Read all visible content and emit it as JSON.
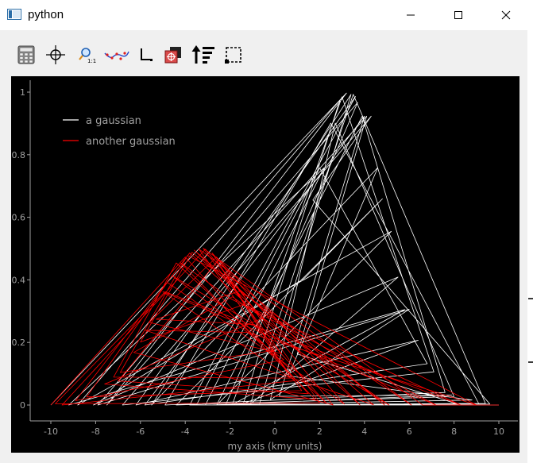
{
  "window": {
    "title": "python",
    "controls": [
      "minimize",
      "maximize",
      "close"
    ]
  },
  "toolbar": {
    "tools": [
      {
        "name": "calculator-tool",
        "icon": "calculator-icon"
      },
      {
        "name": "crosshair-tool",
        "icon": "crosshair-icon"
      },
      {
        "name": "zoom-tool",
        "icon": "zoom-1to1-icon"
      },
      {
        "name": "curve-fit-tool",
        "icon": "curve-points-icon"
      },
      {
        "name": "axes-tool",
        "icon": "axes-icon"
      },
      {
        "name": "export-tool",
        "icon": "export-target-icon"
      },
      {
        "name": "sort-tool",
        "icon": "sort-arrow-icon"
      },
      {
        "name": "select-rect-tool",
        "icon": "dashed-select-icon"
      }
    ]
  },
  "colors": {
    "plot_background": "#000000",
    "series_white": "#ffffff",
    "series_red": "#ff0000",
    "axis_text": "#a0a0a0"
  },
  "chart_data": {
    "type": "line",
    "title": "",
    "xlabel": "my axis (kmy units)",
    "ylabel": "",
    "xlim": [
      -11,
      11
    ],
    "ylim": [
      -0.05,
      1.03
    ],
    "xticks": [
      -10,
      -8,
      -6,
      -4,
      -2,
      0,
      2,
      4,
      6,
      8,
      10
    ],
    "yticks": [
      0,
      0.2,
      0.4,
      0.6,
      0.8,
      1
    ],
    "xticklabels": [
      "-10",
      "-8",
      "-6",
      "-4",
      "-2",
      "0",
      "2",
      "4",
      "6",
      "8",
      "10"
    ],
    "yticklabels": [
      "0",
      "0.2",
      "0.4",
      "0.6",
      "0.8",
      "1"
    ],
    "grid": false,
    "legend_position": "top-left",
    "series": [
      {
        "name": "a gaussian",
        "color": "#ffffff",
        "mean": 3.3,
        "sigma": 1.75,
        "amplitude": 1.0,
        "x": [
          -10,
          3.2,
          -7.5,
          4.1,
          1.0,
          8.3,
          -3.8,
          3.6,
          -6.2,
          6.4,
          -1.4,
          2.9,
          -8.8,
          5.2,
          -2.6,
          3.9,
          7.6,
          -4.9,
          2.5,
          9.1,
          -0.7,
          3.4,
          -5.5,
          4.6,
          0.6,
          8.8,
          -3.1,
          2.2,
          -9.2,
          5.8,
          -1.9,
          3.0,
          7.1,
          -6.8,
          4.3,
          1.7,
          9.6,
          -2.2,
          3.7,
          -7.9,
          6.0,
          -0.2,
          2.7,
          8.0,
          -4.4,
          4.8,
          1.3,
          -8.1,
          5.5,
          -1.1,
          3.5,
          9.4,
          -3.5,
          2.0,
          6.8,
          -5.8,
          4.0,
          0.2,
          7.9,
          -2.9,
          10
        ],
        "y": [
          0.0,
          0.997,
          0.0,
          0.923,
          0.163,
          0.0,
          0.0,
          0.986,
          0.0,
          0.207,
          0.005,
          0.974,
          0.0,
          0.555,
          0.0,
          0.923,
          0.04,
          0.0,
          0.901,
          0.005,
          0.0,
          0.993,
          0.0,
          0.759,
          0.093,
          0.016,
          0.0,
          0.758,
          0.0,
          0.305,
          0.001,
          0.985,
          0.106,
          0.0,
          0.923,
          0.655,
          0.003,
          0.0,
          0.967,
          0.0,
          0.306,
          0.017,
          0.901,
          0.027,
          0.0,
          0.659,
          0.404,
          0.0,
          0.409,
          0.002,
          0.993,
          0.005,
          0.0,
          0.758,
          0.132,
          0.0,
          0.923,
          0.028,
          0.032,
          0.0,
          0.0
        ]
      },
      {
        "name": "another gaussian",
        "color": "#ff0000",
        "mean": -3.3,
        "sigma": 2.1,
        "amplitude": 0.5,
        "x": [
          -10,
          -4.0,
          1.5,
          -7.0,
          -2.5,
          3.8,
          -3.8,
          -8.9,
          0.4,
          -4.6,
          5.1,
          -1.9,
          -6.3,
          2.6,
          -3.1,
          -9.5,
          0.9,
          -5.0,
          7.2,
          -2.0,
          -4.2,
          1.8,
          -7.6,
          -0.5,
          -3.6,
          4.4,
          -5.8,
          -1.2,
          9.0,
          -3.9,
          -6.9,
          0.0,
          -2.8,
          3.1,
          -4.8,
          -8.4,
          1.2,
          -3.4,
          6.1,
          -1.6,
          -5.3,
          -0.9,
          2.3,
          -4.4,
          -7.2,
          0.7,
          -2.3,
          4.9,
          -3.7,
          -6.0,
          -1.4,
          8.3,
          -4.9,
          -9.8,
          2.0,
          -2.6,
          -5.6,
          0.3,
          -3.2,
          6.6,
          10
        ],
        "y": [
          0.0,
          0.473,
          0.036,
          0.077,
          0.465,
          0.0,
          0.486,
          0.014,
          0.145,
          0.414,
          0.0,
          0.346,
          0.168,
          0.0,
          0.498,
          0.0,
          0.078,
          0.362,
          0.0,
          0.341,
          0.454,
          0.018,
          0.067,
          0.279,
          0.495,
          0.001,
          0.239,
          0.232,
          0.0,
          0.478,
          0.104,
          0.175,
          0.486,
          0.003,
          0.392,
          0.026,
          0.046,
          0.499,
          0.0,
          0.364,
          0.274,
          0.257,
          0.006,
          0.454,
          0.089,
          0.086,
          0.429,
          0.0,
          0.488,
          0.201,
          0.321,
          0.0,
          0.362,
          0.004,
          0.007,
          0.473,
          0.264,
          0.164,
          0.501,
          0.0,
          0.0
        ]
      }
    ]
  }
}
